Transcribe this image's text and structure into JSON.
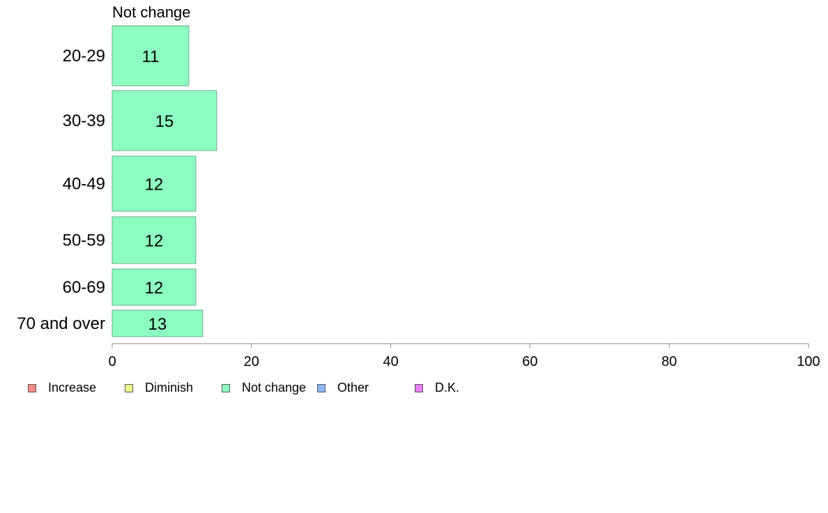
{
  "chart_data": {
    "type": "bar",
    "orientation": "horizontal",
    "panel_title": "Not change",
    "categories": [
      "20-29",
      "30-39",
      "40-49",
      "50-59",
      "60-69",
      "70 and over"
    ],
    "series": [
      {
        "name": "Not change",
        "values": [
          11,
          15,
          12,
          12,
          12,
          13
        ]
      }
    ],
    "value_labels": [
      "11",
      "15",
      "12",
      "12",
      "12",
      "13"
    ],
    "xlim": [
      0,
      100
    ],
    "xticks": [
      0,
      20,
      40,
      60,
      80,
      100
    ],
    "xtick_labels": [
      "0",
      "20",
      "40",
      "60",
      "80",
      "100"
    ],
    "grid": false,
    "legend": {
      "placement": "bottom",
      "entries": [
        {
          "label": "Increase",
          "color": "#f78c8c"
        },
        {
          "label": "Diminish",
          "color": "#eeff8c"
        },
        {
          "label": "Not change",
          "color": "#8cffc0"
        },
        {
          "label": "Other",
          "color": "#8cb8f5"
        },
        {
          "label": "D.K.",
          "color": "#e880f5"
        }
      ]
    }
  }
}
